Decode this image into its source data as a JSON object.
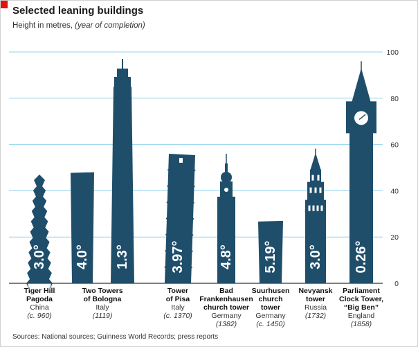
{
  "title": "Selected leaning buildings",
  "subtitle": {
    "main": "Height in metres,",
    "paren": "(year of completion)"
  },
  "source": "Sources: National sources; Guinness World Records; press reports",
  "colors": {
    "building": "#1f4e6b",
    "gridline": "#8fd3ef",
    "label_inside": "#ffffff",
    "red_box": "#e3120b"
  },
  "chart_data": {
    "type": "bar",
    "title": "Selected leaning buildings",
    "ylabel": "Height in metres",
    "ylim": [
      0,
      100
    ],
    "yticks": [
      0,
      20,
      40,
      60,
      80,
      100
    ],
    "grid": true,
    "value_label": "lean angle (degrees)",
    "buildings": [
      {
        "name": [
          "Tiger Hill",
          "Pagoda"
        ],
        "country": "China",
        "year": "(c. 960)",
        "height": 47,
        "lean": "3.0°",
        "shape": "pagoda"
      },
      {
        "name": [
          "Two Towers",
          "of Bologna"
        ],
        "country": "Italy",
        "year": "(1119)",
        "height": 48,
        "lean": "4.0°",
        "shape": "block"
      },
      {
        "name": [],
        "country": "",
        "year": "",
        "height": 97,
        "lean": "1.3°",
        "shape": "asinelli"
      },
      {
        "name": [
          "Tower",
          "of Pisa"
        ],
        "country": "Italy",
        "year": "(c. 1370)",
        "height": 56,
        "lean": "3.97°",
        "shape": "pisa"
      },
      {
        "name": [
          "Bad",
          "Frankenhausen",
          "church tower"
        ],
        "country": "Germany",
        "year": "(1382)",
        "height": 56,
        "lean": "4.8°",
        "shape": "bulb"
      },
      {
        "name": [
          "Suurhusen",
          "church",
          "tower"
        ],
        "country": "Germany",
        "year": "(c. 1450)",
        "height": 27,
        "lean": "5.19°",
        "shape": "block"
      },
      {
        "name": [
          "Nevyansk",
          "tower"
        ],
        "country": "Russia",
        "year": "(1732)",
        "height": 57,
        "lean": "3.0°",
        "shape": "nevyansk"
      },
      {
        "name": [
          "Parliament",
          "Clock Tower,",
          "“Big Ben”"
        ],
        "country": "England",
        "year": "(1858)",
        "height": 96,
        "lean": "0.26°",
        "shape": "bigben"
      }
    ]
  }
}
